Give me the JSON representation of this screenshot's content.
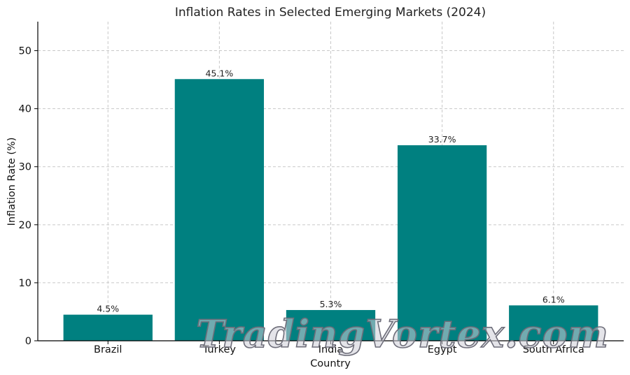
{
  "chart_data": {
    "type": "bar",
    "title": "Inflation Rates in Selected Emerging Markets (2024)",
    "xlabel": "Country",
    "ylabel": "Inflation Rate (%)",
    "categories": [
      "Brazil",
      "Turkey",
      "India",
      "Egypt",
      "South Africa"
    ],
    "values": [
      4.5,
      45.1,
      5.3,
      33.7,
      6.1
    ],
    "data_labels": [
      "4.5%",
      "45.1%",
      "5.3%",
      "33.7%",
      "6.1%"
    ],
    "ylim": [
      0,
      55
    ],
    "yticks": [
      0,
      10,
      20,
      30,
      40,
      50
    ],
    "grid": true,
    "bar_color": "#008080"
  },
  "watermark": "TradingVortex.com"
}
